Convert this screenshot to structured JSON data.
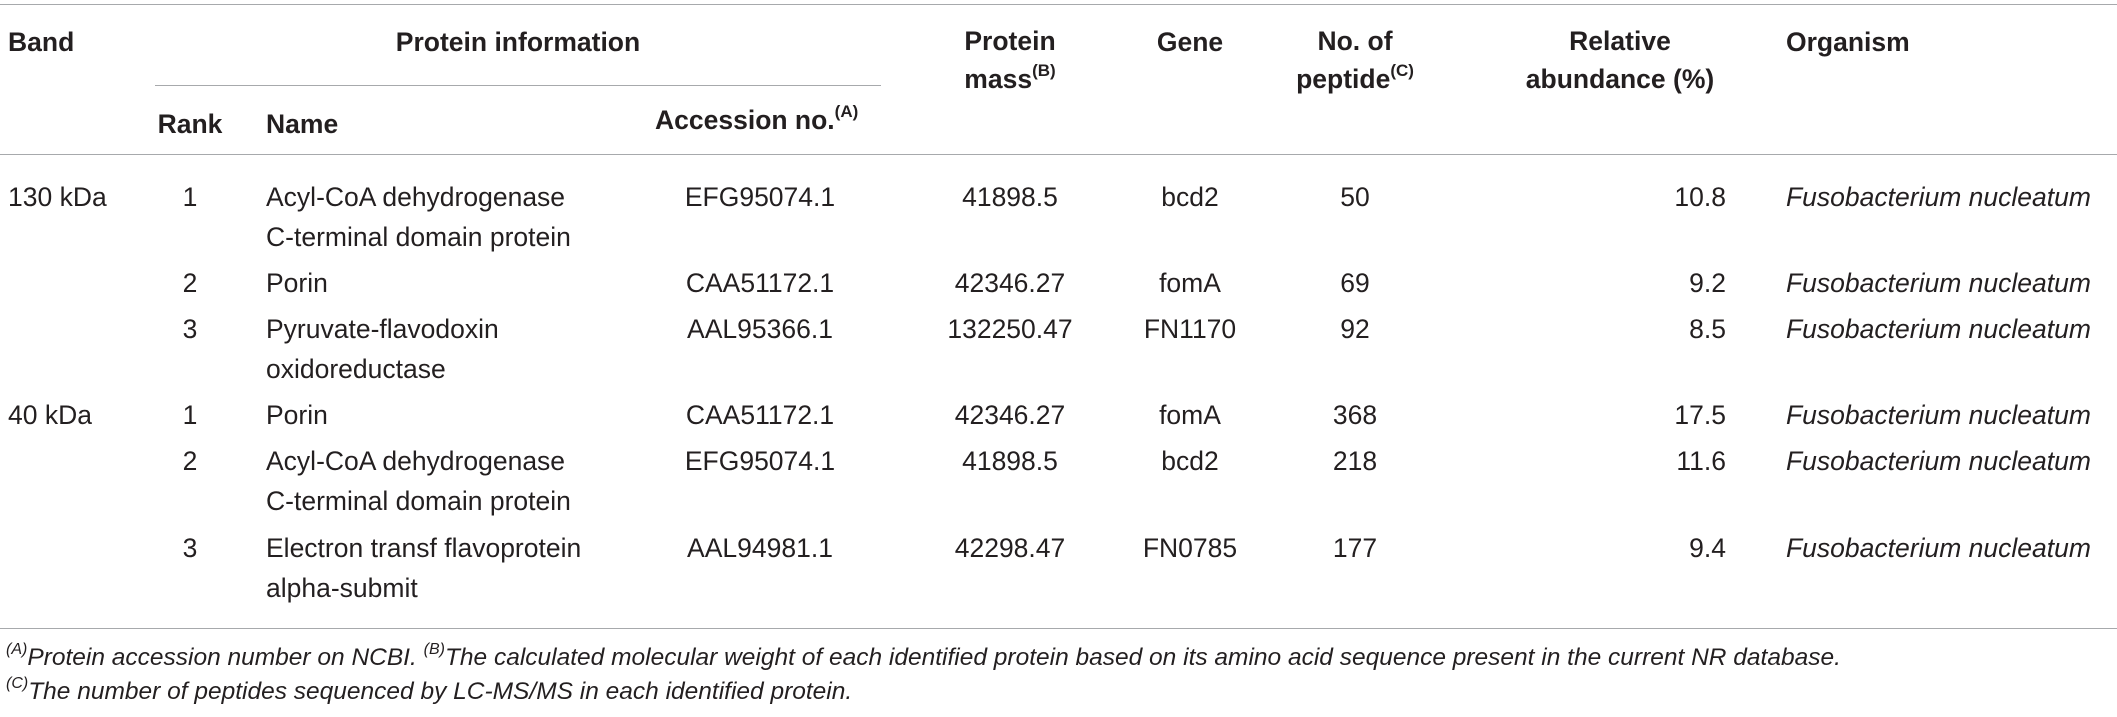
{
  "header": {
    "band": "Band",
    "protein_information": "Protein information",
    "rank": "Rank",
    "name": "Name",
    "accession": "Accession no.",
    "accession_sup": "(A)",
    "mass_line1": "Protein",
    "mass_line2": "mass",
    "mass_sup": "(B)",
    "gene": "Gene",
    "peptide_line1": "No. of",
    "peptide_line2": "peptide",
    "peptide_sup": "(C)",
    "abundance_line1": "Relative",
    "abundance_line2": "abundance (%)",
    "organism": "Organism"
  },
  "rows": [
    {
      "band": "130 kDa",
      "rank": "1",
      "name1": "Acyl-CoA dehydrogenase",
      "name2": "C-terminal domain protein",
      "accession": "EFG95074.1",
      "mass": "41898.5",
      "gene": "bcd2",
      "peptides": "50",
      "abundance": "10.8",
      "organism": "Fusobacterium nucleatum"
    },
    {
      "band": "",
      "rank": "2",
      "name1": "Porin",
      "name2": "",
      "accession": "CAA51172.1",
      "mass": "42346.27",
      "gene": "fomA",
      "peptides": "69",
      "abundance": "9.2",
      "organism": "Fusobacterium nucleatum"
    },
    {
      "band": "",
      "rank": "3",
      "name1": "Pyruvate-flavodoxin",
      "name2": "oxidoreductase",
      "accession": "AAL95366.1",
      "mass": "132250.47",
      "gene": "FN1170",
      "peptides": "92",
      "abundance": "8.5",
      "organism": "Fusobacterium nucleatum"
    },
    {
      "band": "40 kDa",
      "rank": "1",
      "name1": "Porin",
      "name2": "",
      "accession": "CAA51172.1",
      "mass": "42346.27",
      "gene": "fomA",
      "peptides": "368",
      "abundance": "17.5",
      "organism": "Fusobacterium nucleatum"
    },
    {
      "band": "",
      "rank": "2",
      "name1": "Acyl-CoA dehydrogenase",
      "name2": "C-terminal domain protein",
      "accession": "EFG95074.1",
      "mass": "41898.5",
      "gene": "bcd2",
      "peptides": "218",
      "abundance": "11.6",
      "organism": "Fusobacterium nucleatum"
    },
    {
      "band": "",
      "rank": "3",
      "name1": "Electron transf flavoprotein",
      "name2": "alpha-submit",
      "accession": "AAL94981.1",
      "mass": "42298.47",
      "gene": "FN0785",
      "peptides": "177",
      "abundance": "9.4",
      "organism": "Fusobacterium nucleatum"
    }
  ],
  "footnotes": {
    "a_marker": "(A)",
    "a_text": "Protein accession number on NCBI.",
    "b_marker": "(B)",
    "b_text": "The calculated molecular weight of each identified protein based on its amino acid sequence present in the current NR database.",
    "c_marker": "(C)",
    "c_text": "The number of peptides sequenced by LC-MS/MS in each identified protein."
  }
}
